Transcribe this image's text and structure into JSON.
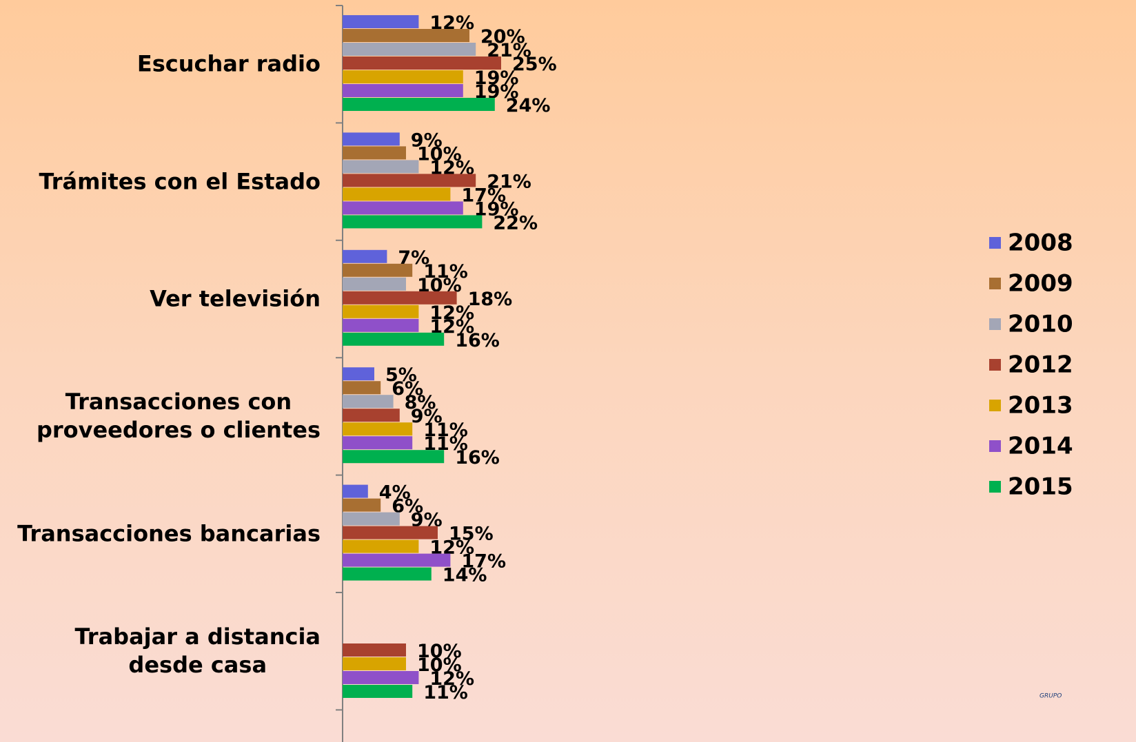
{
  "chart_data": {
    "type": "hbar",
    "categories": [
      "Escuchar radio",
      "Trámites con el Estado",
      "Ver televisión",
      "Transacciones con\nproveedores o  clientes",
      "Transacciones bancarias",
      "Trabajar a distancia\ndesde casa"
    ],
    "series": [
      {
        "name": "2008",
        "color": "#5f62da",
        "values": [
          12,
          9,
          7,
          5,
          4,
          null
        ],
        "value_labels": [
          "12%",
          "9%",
          "7%",
          "5%",
          "4%",
          null
        ]
      },
      {
        "name": "2009",
        "color": "#a86f32",
        "values": [
          20,
          10,
          11,
          6,
          6,
          null
        ],
        "value_labels": [
          "20%",
          "10%",
          "11%",
          "6%",
          "6%",
          null
        ]
      },
      {
        "name": "2010",
        "color": "#a3a6b6",
        "values": [
          21,
          12,
          10,
          8,
          9,
          null
        ],
        "value_labels": [
          "21%",
          "12%",
          "10%",
          "8%",
          "9%",
          null
        ]
      },
      {
        "name": "2012",
        "color": "#a8412f",
        "values": [
          25,
          21,
          18,
          9,
          15,
          10
        ],
        "value_labels": [
          "25%",
          "21%",
          "18%",
          "9%",
          "15%",
          "10%"
        ]
      },
      {
        "name": "2013",
        "color": "#d8a400",
        "values": [
          19,
          17,
          12,
          11,
          12,
          10
        ],
        "value_labels": [
          "19%",
          "17%",
          "12%",
          "11%",
          "12%",
          "10%"
        ]
      },
      {
        "name": "2014",
        "color": "#8f50c9",
        "values": [
          19,
          19,
          12,
          11,
          17,
          12
        ],
        "value_labels": [
          "19%",
          "19%",
          "12%",
          "11%",
          "17%",
          "12%"
        ]
      },
      {
        "name": "2015",
        "color": "#00b04f",
        "values": [
          24,
          22,
          16,
          16,
          14,
          11
        ],
        "value_labels": [
          "24%",
          "22%",
          "16%",
          "16%",
          "14%",
          "11%"
        ]
      }
    ],
    "legend": "right",
    "logo_text": "GRUPO"
  }
}
